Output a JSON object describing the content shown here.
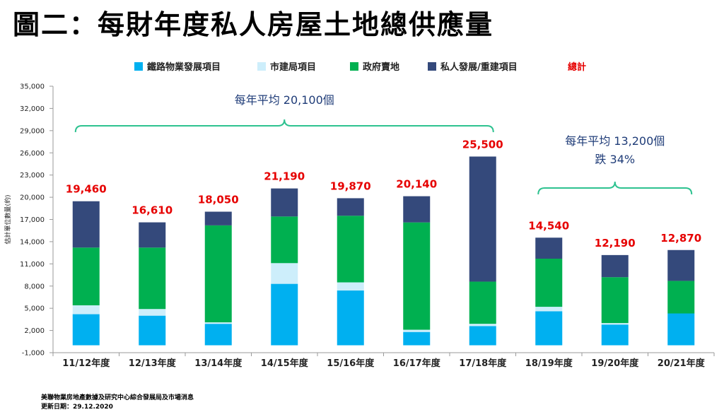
{
  "title": "圖二：每財年度私人房屋土地總供應量",
  "colors": {
    "rail": "#00b0f0",
    "ura": "#cdeefb",
    "gov": "#00b050",
    "private": "#34497b",
    "total": "#e60000",
    "annotation": "#1f3c78",
    "bracket": "#2ec290"
  },
  "chart_data": {
    "type": "bar",
    "stacked": true,
    "ylabel": "估計單位數量(約)",
    "ylim": [
      -1000,
      35000
    ],
    "yticks": [
      -1000,
      2000,
      5000,
      8000,
      11000,
      14000,
      17000,
      20000,
      23000,
      26000,
      29000,
      32000,
      35000
    ],
    "ytick_labels": [
      "-1,000",
      "2,000",
      "5,000",
      "8,000",
      "11,000",
      "14,000",
      "17,000",
      "20,000",
      "23,000",
      "26,000",
      "29,000",
      "32,000",
      "35,000"
    ],
    "categories": [
      "11/12年度",
      "12/13年度",
      "13/14年度",
      "14/15年度",
      "15/16年度",
      "16/17年度",
      "17/18年度",
      "18/19年度",
      "19/20年度",
      "20/21年度"
    ],
    "series": [
      {
        "name": "鐵路物業發展項目",
        "color": "#00b0f0",
        "values": [
          4200,
          4000,
          2900,
          8300,
          7400,
          1800,
          2600,
          4600,
          2800,
          4300
        ]
      },
      {
        "name": "市建局項目",
        "color": "#cdeefb",
        "values": [
          1200,
          900,
          200,
          2800,
          1100,
          300,
          300,
          600,
          200,
          0
        ]
      },
      {
        "name": "政府賣地",
        "color": "#00b050",
        "values": [
          7800,
          8300,
          13100,
          6300,
          9000,
          14500,
          5700,
          6500,
          6200,
          4400
        ]
      },
      {
        "name": "私人發展/重建項目",
        "color": "#34497b",
        "values": [
          6260,
          3410,
          1850,
          3790,
          2370,
          3540,
          16900,
          2840,
          2990,
          4170
        ]
      }
    ],
    "totals": [
      19460,
      16610,
      18050,
      21190,
      19870,
      20140,
      25500,
      14540,
      12190,
      12870
    ],
    "total_labels": [
      "19,460",
      "16,610",
      "18,050",
      "21,190",
      "19,870",
      "20,140",
      "25,500",
      "14,540",
      "12,190",
      "12,870"
    ],
    "total_legend_label": "總計",
    "annotations": [
      {
        "lines": [
          "每年平均 20,100個"
        ],
        "bracket_from": "11/12年度",
        "bracket_to": "17/18年度"
      },
      {
        "lines": [
          "每年平均 13,200個",
          "跌 34%"
        ],
        "bracket_from": "18/19年度",
        "bracket_to": "20/21年度"
      }
    ]
  },
  "footer": {
    "source": "美聯物業房地產數據及研究中心綜合發展局及市場消息",
    "updated": "更新日期：29.12.2020"
  }
}
